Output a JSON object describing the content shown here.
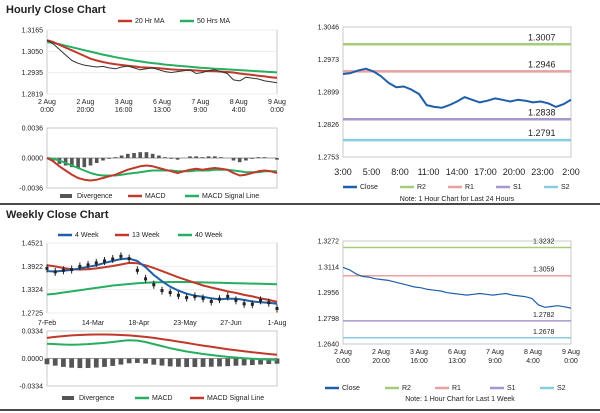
{
  "hourly": {
    "title": "Hourly Close Chart",
    "main": {
      "legend": [
        "20 Hr MA",
        "50 Hrs MA"
      ],
      "y_ticks": [
        "1.3165",
        "1.3050",
        "1.2935",
        "1.2819"
      ],
      "x_ticks": [
        [
          "2 Aug",
          "0:00"
        ],
        [
          "2 Aug",
          "20:00"
        ],
        [
          "3 Aug",
          "16:00"
        ],
        [
          "6 Aug",
          "13:00"
        ],
        [
          "7 Aug",
          "9:00"
        ],
        [
          "8 Aug",
          "4:00"
        ],
        [
          "9 Aug",
          "0:00"
        ]
      ],
      "close": [
        1.311,
        1.309,
        1.306,
        1.303,
        1.3,
        1.2985,
        1.2975,
        1.297,
        1.2965,
        1.2968,
        1.296,
        1.2955,
        1.2965,
        1.297,
        1.296,
        1.295,
        1.2955,
        1.296,
        1.295,
        1.294,
        1.2935,
        1.294,
        1.2945,
        1.295,
        1.293,
        1.2935,
        1.2945,
        1.295,
        1.294,
        1.293,
        1.2895,
        1.289,
        1.291,
        1.2905,
        1.29,
        1.289,
        1.2885,
        1.288
      ],
      "ma20": [
        1.311,
        1.31,
        1.3085,
        1.307,
        1.3055,
        1.304,
        1.3025,
        1.301,
        1.3,
        1.2992,
        1.2985,
        1.298,
        1.2976,
        1.2972,
        1.2968,
        1.2964,
        1.2962,
        1.296,
        1.2958,
        1.2955,
        1.2952,
        1.295,
        1.2949,
        1.2948,
        1.2946,
        1.2944,
        1.2943,
        1.2942,
        1.294,
        1.2938,
        1.2935,
        1.293,
        1.2926,
        1.2922,
        1.2918,
        1.2914,
        1.291,
        1.2906
      ],
      "ma50": [
        1.31,
        1.3095,
        1.3088,
        1.308,
        1.3072,
        1.3064,
        1.3056,
        1.3048,
        1.304,
        1.3032,
        1.3025,
        1.3018,
        1.3012,
        1.3006,
        1.3,
        1.2995,
        1.299,
        1.2986,
        1.2982,
        1.2978,
        1.2975,
        1.2972,
        1.2969,
        1.2966,
        1.2963,
        1.296,
        1.2958,
        1.2956,
        1.2954,
        1.2952,
        1.295,
        1.2948,
        1.2946,
        1.2944,
        1.2942,
        1.294,
        1.2938,
        1.2936
      ],
      "ylim": [
        1.2819,
        1.3165
      ]
    },
    "macd": {
      "legend": [
        "Divergence",
        "MACD",
        "MACD Signal Line"
      ],
      "y_ticks": [
        "0.0036",
        "0.0000",
        "-0.0036"
      ],
      "macd": [
        0.0,
        -0.0004,
        -0.001,
        -0.0015,
        -0.002,
        -0.0024,
        -0.0026,
        -0.0027,
        -0.0026,
        -0.0024,
        -0.0022,
        -0.002,
        -0.0017,
        -0.0014,
        -0.0012,
        -0.001,
        -0.0009,
        -0.001,
        -0.0012,
        -0.0014,
        -0.0016,
        -0.0018,
        -0.0016,
        -0.0014,
        -0.0013,
        -0.0014,
        -0.0013,
        -0.0012,
        -0.0013,
        -0.0014,
        -0.0018,
        -0.0021,
        -0.002,
        -0.0018,
        -0.0016,
        -0.0015,
        -0.0016,
        -0.0018
      ],
      "signal": [
        0.0,
        -0.0001,
        -0.0003,
        -0.0006,
        -0.0009,
        -0.0012,
        -0.0015,
        -0.0018,
        -0.002,
        -0.0021,
        -0.0021,
        -0.0021,
        -0.002,
        -0.0019,
        -0.0018,
        -0.0017,
        -0.0016,
        -0.0015,
        -0.0015,
        -0.0015,
        -0.0015,
        -0.0016,
        -0.0016,
        -0.0016,
        -0.0015,
        -0.0015,
        -0.0015,
        -0.0014,
        -0.0014,
        -0.0014,
        -0.0015,
        -0.0016,
        -0.0017,
        -0.0017,
        -0.0017,
        -0.0016,
        -0.0016,
        -0.0016
      ],
      "ylim": [
        -0.0036,
        0.0036
      ]
    },
    "pivot": {
      "y_ticks": [
        "1.3046",
        "1.2973",
        "1.2899",
        "1.2826",
        "1.2753"
      ],
      "x_ticks": [
        "3:00",
        "5:00",
        "8:00",
        "11:00",
        "14:00",
        "17:00",
        "20:00",
        "23:00",
        "2:00"
      ],
      "levels": [
        {
          "name": "R2",
          "value": 1.3007,
          "label": "1.3007",
          "color": "#a6cc7a"
        },
        {
          "name": "R1",
          "value": 1.2946,
          "label": "1.2946",
          "color": "#e8a0a0"
        },
        {
          "name": "S1",
          "value": 1.2838,
          "label": "1.2838",
          "color": "#a896cc"
        },
        {
          "name": "S2",
          "value": 1.2791,
          "label": "1.2791",
          "color": "#88cce0"
        }
      ],
      "close": [
        1.294,
        1.2942,
        1.2948,
        1.2952,
        1.2946,
        1.2935,
        1.292,
        1.291,
        1.2912,
        1.2905,
        1.2895,
        1.287,
        1.2866,
        1.2864,
        1.287,
        1.2878,
        1.2888,
        1.2882,
        1.2876,
        1.288,
        1.2885,
        1.2882,
        1.2878,
        1.2882,
        1.288,
        1.2876,
        1.2878,
        1.2874,
        1.2866,
        1.2872,
        1.2882
      ],
      "legend": [
        "Close",
        "R2",
        "R1",
        "S1",
        "S2"
      ],
      "note": "Note: 1 Hour Chart for Last 24 Hours",
      "ylim": [
        1.2753,
        1.3046
      ]
    }
  },
  "weekly": {
    "title": "Weekly Close Chart",
    "main": {
      "legend": [
        "4 Week",
        "13 Week",
        "40 Week"
      ],
      "y_ticks": [
        "1.4521",
        "1.3922",
        "1.3324",
        "1.2725"
      ],
      "x_ticks": [
        "7-Feb",
        "14-Mar",
        "18-Apr",
        "23-May",
        "27-Jun",
        "1-Aug"
      ],
      "close": [
        1.387,
        1.378,
        1.382,
        1.384,
        1.392,
        1.396,
        1.401,
        1.406,
        1.411,
        1.418,
        1.412,
        1.382,
        1.36,
        1.345,
        1.33,
        1.325,
        1.318,
        1.312,
        1.315,
        1.31,
        1.302,
        1.308,
        1.315,
        1.305,
        1.296,
        1.295,
        1.305,
        1.299,
        1.284
      ],
      "ma4": [
        1.38,
        1.379,
        1.381,
        1.383,
        1.387,
        1.391,
        1.395,
        1.401,
        1.406,
        1.411,
        1.412,
        1.406,
        1.39,
        1.37,
        1.354,
        1.34,
        1.33,
        1.322,
        1.317,
        1.314,
        1.31,
        1.308,
        1.309,
        1.309,
        1.306,
        1.302,
        1.3,
        1.299,
        1.296
      ],
      "ma13": [
        1.395,
        1.392,
        1.388,
        1.385,
        1.384,
        1.385,
        1.387,
        1.39,
        1.393,
        1.397,
        1.401,
        1.4,
        1.395,
        1.388,
        1.38,
        1.372,
        1.364,
        1.357,
        1.35,
        1.343,
        1.338,
        1.333,
        1.328,
        1.324,
        1.319,
        1.315,
        1.31,
        1.306,
        1.301
      ],
      "ma40": [
        1.32,
        1.322,
        1.325,
        1.328,
        1.331,
        1.334,
        1.337,
        1.34,
        1.343,
        1.345,
        1.347,
        1.349,
        1.35,
        1.351,
        1.3515,
        1.352,
        1.352,
        1.352,
        1.3515,
        1.351,
        1.3505,
        1.35,
        1.3495,
        1.349,
        1.3485,
        1.348,
        1.3475,
        1.347,
        1.3465
      ],
      "ylim": [
        1.2725,
        1.4521
      ]
    },
    "macd": {
      "legend": [
        "Divergence",
        "MACD",
        "MACD Signal Line"
      ],
      "y_ticks": [
        "0.0334",
        "0.0000",
        "-0.0334"
      ],
      "macd": [
        0.018,
        0.0175,
        0.017,
        0.0168,
        0.017,
        0.0175,
        0.0182,
        0.019,
        0.02,
        0.0212,
        0.0222,
        0.0218,
        0.02,
        0.0175,
        0.015,
        0.0125,
        0.0105,
        0.0085,
        0.007,
        0.0055,
        0.0042,
        0.003,
        0.002,
        0.0012,
        0.0004,
        -0.0003,
        -0.0008,
        -0.0012,
        -0.0018
      ],
      "signal": [
        0.025,
        0.0262,
        0.0272,
        0.028,
        0.0286,
        0.029,
        0.0292,
        0.0292,
        0.029,
        0.0286,
        0.028,
        0.0272,
        0.0262,
        0.025,
        0.0236,
        0.0221,
        0.0205,
        0.0189,
        0.0173,
        0.0157,
        0.0142,
        0.0127,
        0.0113,
        0.01,
        0.0088,
        0.0076,
        0.0065,
        0.0055,
        0.0045
      ],
      "ylim": [
        -0.0334,
        0.0334
      ]
    },
    "pivot": {
      "y_ticks": [
        "1.3272",
        "1.3114",
        "1.2956",
        "1.2798",
        "1.2640"
      ],
      "x_ticks": [
        [
          "2 Aug",
          "0:00"
        ],
        [
          "2 Aug",
          "20:00"
        ],
        [
          "3 Aug",
          "16:00"
        ],
        [
          "6 Aug",
          "13:00"
        ],
        [
          "7 Aug",
          "9:00"
        ],
        [
          "8 Aug",
          "4:00"
        ],
        [
          "9 Aug",
          "0:00"
        ]
      ],
      "levels": [
        {
          "name": "R2",
          "value": 1.3232,
          "label": "1.3232",
          "color": "#a6cc7a"
        },
        {
          "name": "R1",
          "value": 1.3059,
          "label": "1.3059",
          "color": "#e8a0a0"
        },
        {
          "name": "S1",
          "value": 1.2782,
          "label": "1.2782",
          "color": "#a896cc"
        },
        {
          "name": "S2",
          "value": 1.2678,
          "label": "1.2678",
          "color": "#88cce0"
        }
      ],
      "close": [
        1.311,
        1.3095,
        1.307,
        1.3055,
        1.305,
        1.304,
        1.3035,
        1.303,
        1.302,
        1.301,
        1.3,
        1.299,
        1.2985,
        1.2975,
        1.297,
        1.2965,
        1.2955,
        1.295,
        1.2945,
        1.294,
        1.2945,
        1.295,
        1.2945,
        1.294,
        1.2945,
        1.295,
        1.294,
        1.2935,
        1.293,
        1.292,
        1.288,
        1.2865,
        1.287,
        1.2875,
        1.2868,
        1.286
      ],
      "legend": [
        "Close",
        "R2",
        "R1",
        "S1",
        "S2"
      ],
      "note": "Note: 1 Hour Chart for Last 1 Week",
      "ylim": [
        1.264,
        1.3272
      ]
    }
  },
  "colors": {
    "close": "#1f5fa8",
    "ma_short": "#c0392b",
    "ma_long": "#27ae60",
    "divergence": "#555555",
    "macd_red": "#c0392b",
    "macd_green": "#27ae60",
    "weekly_4": "#1f5fa8",
    "weekly_13": "#c0392b",
    "weekly_40": "#27ae60"
  }
}
